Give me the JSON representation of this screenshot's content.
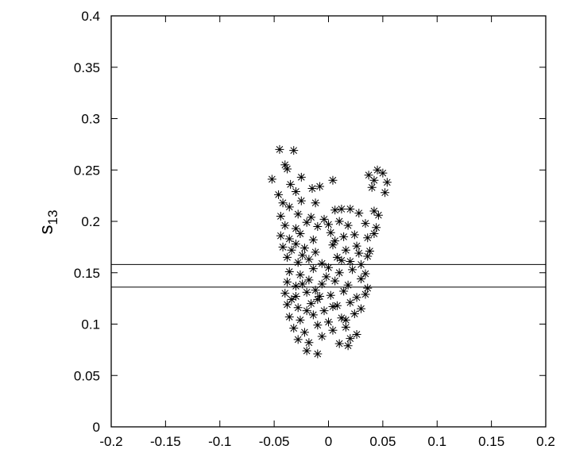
{
  "chart_data": {
    "type": "scatter",
    "title": "",
    "xlabel": "",
    "ylabel": {
      "base": "s",
      "sub": "13"
    },
    "xlim": [
      -0.2,
      0.2
    ],
    "ylim": [
      0,
      0.4
    ],
    "grid": false,
    "legend": "none",
    "marker": "asterisk",
    "color": "#000000",
    "x_ticks": [
      "-0.2",
      "-0.15",
      "-0.1",
      "-0.05",
      "0",
      "0.05",
      "0.1",
      "0.15",
      "0.2"
    ],
    "y_ticks": [
      "0",
      "0.05",
      "0.1",
      "0.15",
      "0.2",
      "0.25",
      "0.3",
      "0.35",
      "0.4"
    ],
    "hlines": [
      0.136,
      0.158
    ],
    "points": [
      [
        -0.045,
        0.27
      ],
      [
        -0.032,
        0.269
      ],
      [
        -0.052,
        0.241
      ],
      [
        -0.04,
        0.255
      ],
      [
        -0.038,
        0.251
      ],
      [
        -0.046,
        0.226
      ],
      [
        -0.035,
        0.236
      ],
      [
        -0.025,
        0.243
      ],
      [
        -0.015,
        0.232
      ],
      [
        -0.008,
        0.234
      ],
      [
        0.004,
        0.24
      ],
      [
        -0.03,
        0.229
      ],
      [
        -0.042,
        0.218
      ],
      [
        0.037,
        0.245
      ],
      [
        0.045,
        0.25
      ],
      [
        0.05,
        0.247
      ],
      [
        0.042,
        0.24
      ],
      [
        0.054,
        0.238
      ],
      [
        0.052,
        0.228
      ],
      [
        0.04,
        0.233
      ],
      [
        -0.036,
        0.214
      ],
      [
        -0.025,
        0.22
      ],
      [
        -0.012,
        0.218
      ],
      [
        0.006,
        0.211
      ],
      [
        0.012,
        0.212
      ],
      [
        0.02,
        0.212
      ],
      [
        0.028,
        0.208
      ],
      [
        0.042,
        0.21
      ],
      [
        0.046,
        0.206
      ],
      [
        -0.044,
        0.205
      ],
      [
        -0.028,
        0.207
      ],
      [
        -0.016,
        0.204
      ],
      [
        -0.004,
        0.202
      ],
      [
        -0.04,
        0.196
      ],
      [
        -0.03,
        0.193
      ],
      [
        -0.02,
        0.199
      ],
      [
        -0.01,
        0.195
      ],
      [
        0.0,
        0.197
      ],
      [
        0.01,
        0.2
      ],
      [
        0.018,
        0.196
      ],
      [
        0.034,
        0.198
      ],
      [
        0.044,
        0.194
      ],
      [
        -0.044,
        0.186
      ],
      [
        -0.036,
        0.183
      ],
      [
        -0.026,
        0.188
      ],
      [
        -0.014,
        0.182
      ],
      [
        0.002,
        0.189
      ],
      [
        0.014,
        0.185
      ],
      [
        0.024,
        0.187
      ],
      [
        0.036,
        0.184
      ],
      [
        0.042,
        0.188
      ],
      [
        -0.042,
        0.175
      ],
      [
        -0.034,
        0.172
      ],
      [
        -0.022,
        0.174
      ],
      [
        -0.012,
        0.17
      ],
      [
        0.004,
        0.177
      ],
      [
        0.016,
        0.172
      ],
      [
        0.026,
        0.176
      ],
      [
        0.038,
        0.171
      ],
      [
        -0.038,
        0.165
      ],
      [
        -0.028,
        0.16
      ],
      [
        -0.018,
        0.163
      ],
      [
        -0.006,
        0.159
      ],
      [
        0.008,
        0.165
      ],
      [
        0.02,
        0.161
      ],
      [
        0.03,
        0.158
      ],
      [
        0.036,
        0.166
      ],
      [
        -0.036,
        0.151
      ],
      [
        -0.026,
        0.148
      ],
      [
        -0.014,
        0.154
      ],
      [
        -0.002,
        0.146
      ],
      [
        0.01,
        0.15
      ],
      [
        0.022,
        0.153
      ],
      [
        0.034,
        0.149
      ],
      [
        -0.038,
        0.141
      ],
      [
        -0.03,
        0.137
      ],
      [
        -0.018,
        0.143
      ],
      [
        -0.006,
        0.139
      ],
      [
        0.006,
        0.142
      ],
      [
        0.018,
        0.138
      ],
      [
        0.03,
        0.144
      ],
      [
        0.036,
        0.135
      ],
      [
        -0.04,
        0.13
      ],
      [
        -0.03,
        0.127
      ],
      [
        -0.02,
        0.131
      ],
      [
        -0.01,
        0.124
      ],
      [
        0.002,
        0.128
      ],
      [
        0.014,
        0.132
      ],
      [
        0.026,
        0.126
      ],
      [
        0.034,
        0.129
      ],
      [
        -0.038,
        0.119
      ],
      [
        -0.028,
        0.116
      ],
      [
        -0.016,
        0.12
      ],
      [
        -0.004,
        0.113
      ],
      [
        0.008,
        0.118
      ],
      [
        0.02,
        0.121
      ],
      [
        0.03,
        0.115
      ],
      [
        -0.036,
        0.107
      ],
      [
        -0.026,
        0.104
      ],
      [
        -0.014,
        0.109
      ],
      [
        0.0,
        0.102
      ],
      [
        0.012,
        0.106
      ],
      [
        0.024,
        0.11
      ],
      [
        -0.032,
        0.096
      ],
      [
        -0.022,
        0.092
      ],
      [
        -0.01,
        0.099
      ],
      [
        0.004,
        0.094
      ],
      [
        0.016,
        0.097
      ],
      [
        0.026,
        0.09
      ],
      [
        -0.028,
        0.085
      ],
      [
        -0.018,
        0.082
      ],
      [
        -0.006,
        0.088
      ],
      [
        0.01,
        0.081
      ],
      [
        0.02,
        0.086
      ],
      [
        -0.02,
        0.074
      ],
      [
        -0.01,
        0.071
      ],
      [
        0.018,
        0.079
      ],
      [
        -0.034,
        0.124
      ],
      [
        -0.024,
        0.139
      ],
      [
        -0.012,
        0.133
      ],
      [
        0.0,
        0.155
      ],
      [
        0.012,
        0.162
      ],
      [
        -0.02,
        0.113
      ],
      [
        -0.008,
        0.127
      ],
      [
        0.004,
        0.117
      ],
      [
        0.016,
        0.104
      ],
      [
        -0.03,
        0.178
      ],
      [
        0.006,
        0.181
      ],
      [
        0.028,
        0.169
      ],
      [
        -0.024,
        0.167
      ]
    ]
  }
}
